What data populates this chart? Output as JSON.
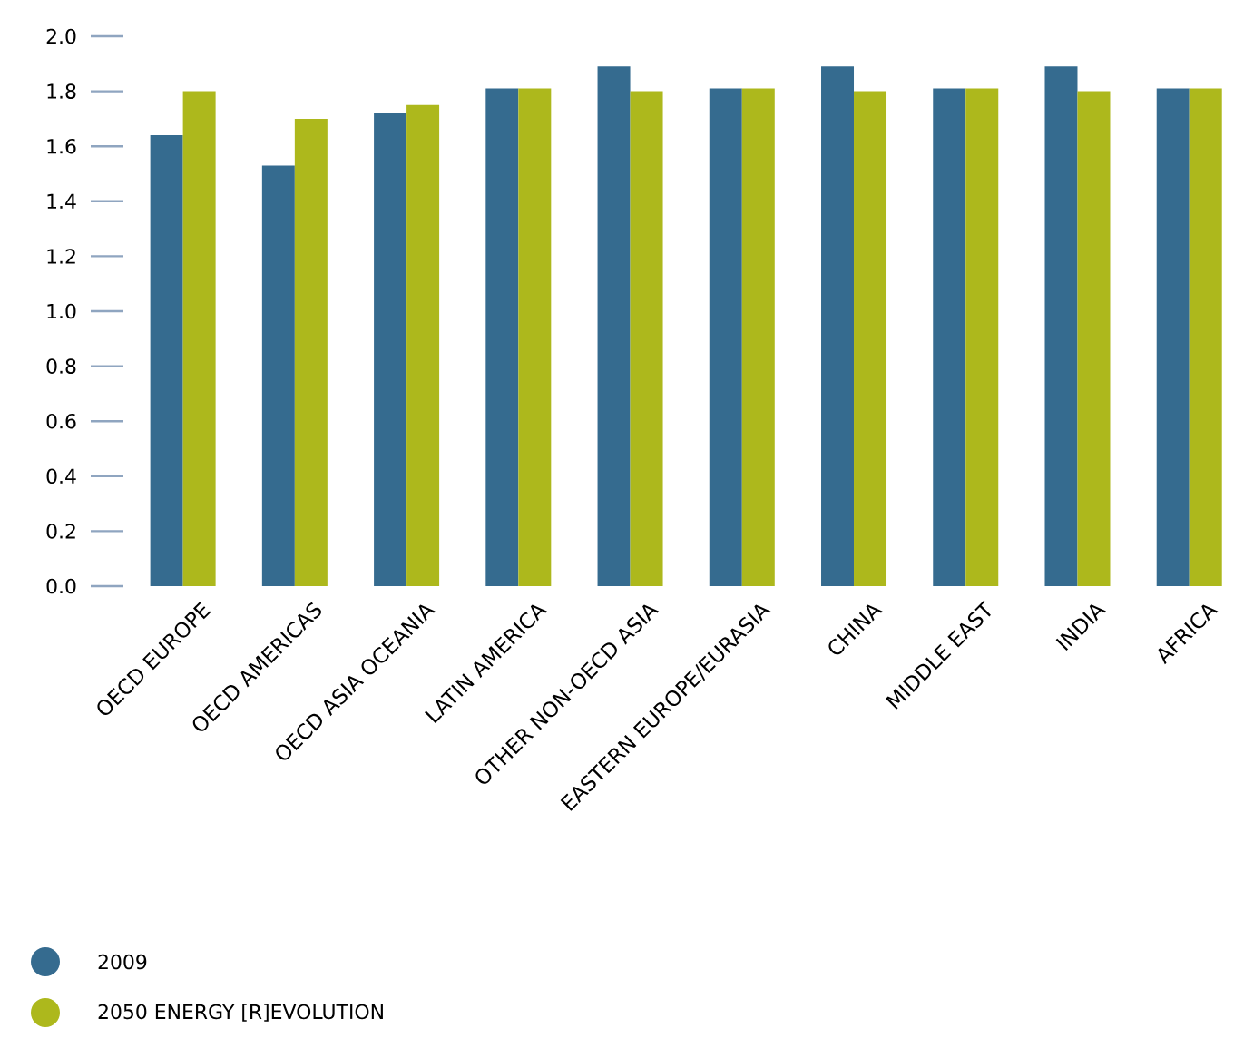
{
  "chart_data": {
    "type": "bar",
    "categories": [
      "OECD EUROPE",
      "OECD AMERICAS",
      "OECD ASIA OCEANIA",
      "LATIN AMERICA",
      "OTHER NON-OECD ASIA",
      "EASTERN EUROPE/EURASIA",
      "CHINA",
      "MIDDLE EAST",
      "INDIA",
      "AFRICA"
    ],
    "series": [
      {
        "name": "2009",
        "color": "#356b8f",
        "values": [
          1.64,
          1.53,
          1.72,
          1.81,
          1.89,
          1.81,
          1.89,
          1.81,
          1.89,
          1.81
        ]
      },
      {
        "name": "2050 ENERGY [R]EVOLUTION",
        "color": "#adb81c",
        "values": [
          1.8,
          1.7,
          1.75,
          1.81,
          1.8,
          1.81,
          1.8,
          1.81,
          1.8,
          1.81
        ]
      }
    ],
    "ylim": [
      0,
      2.0
    ],
    "yticks": [
      {
        "value": 0,
        "label": "0.0"
      },
      0.2,
      0.4,
      0.6,
      0.8,
      {
        "value": 1,
        "label": "1.0"
      },
      1.2,
      1.4,
      1.6,
      1.8,
      {
        "value": 2,
        "label": "2.0"
      }
    ],
    "grid": false,
    "legend": "bottom left"
  }
}
